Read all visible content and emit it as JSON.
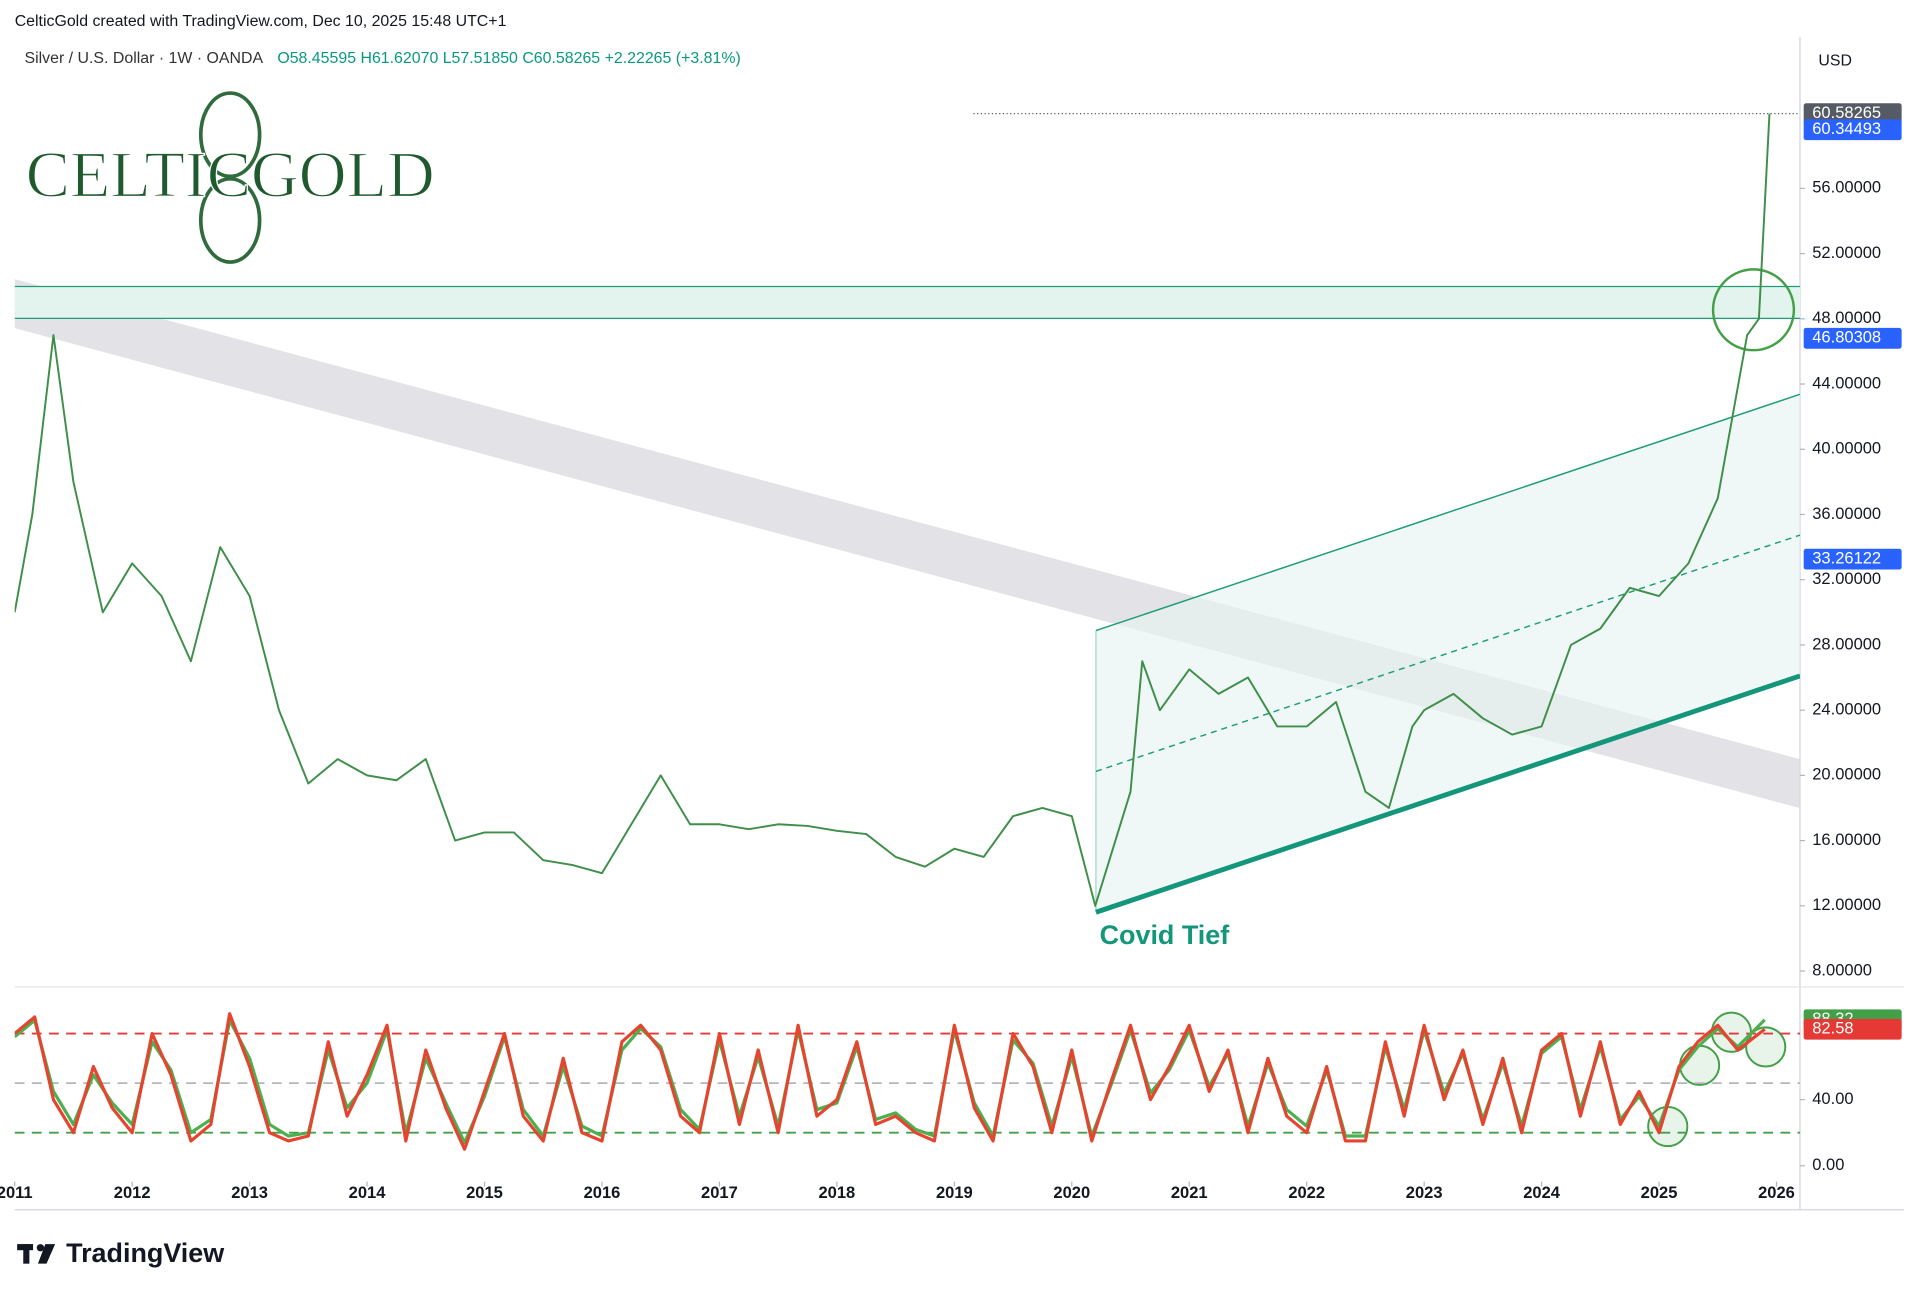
{
  "header": {
    "attribution": "CelticGold created with TradingView.com, Dec 10, 2025 15:48 UTC+1"
  },
  "logo": {
    "text": "CELTICGOLD"
  },
  "annotations": {
    "covid": "Covid Tief"
  },
  "chart_data": [
    {
      "type": "line",
      "title": "Silver / U.S. Dollar · 1W · OANDA",
      "quote": "O58.45595 H61.62070 L57.51850 C60.58265 +2.22265 (+3.81%)",
      "unit": "USD",
      "xlim": [
        2011,
        2026.2
      ],
      "ylim": [
        7.1,
        65.3
      ],
      "grid": false,
      "yticks": [
        {
          "value": 8,
          "label": "8.00000"
        },
        {
          "value": 12,
          "label": "12.00000"
        },
        {
          "value": 16,
          "label": "16.00000"
        },
        {
          "value": 20,
          "label": "20.00000"
        },
        {
          "value": 24,
          "label": "24.00000"
        },
        {
          "value": 28,
          "label": "28.00000"
        },
        {
          "value": 32,
          "label": "32.00000"
        },
        {
          "value": 36,
          "label": "36.00000"
        },
        {
          "value": 40,
          "label": "40.00000"
        },
        {
          "value": 44,
          "label": "44.00000"
        },
        {
          "value": 48,
          "label": "48.00000"
        },
        {
          "value": 52,
          "label": "52.00000"
        },
        {
          "value": 56,
          "label": "56.00000"
        }
      ],
      "series": [
        {
          "color": "#3f8f4a",
          "x": [
            2011.0,
            2011.15,
            2011.33,
            2011.5,
            2011.75,
            2012.0,
            2012.25,
            2012.5,
            2012.75,
            2013.0,
            2013.25,
            2013.5,
            2013.75,
            2014.0,
            2014.25,
            2014.5,
            2014.75,
            2015.0,
            2015.25,
            2015.5,
            2015.75,
            2016.0,
            2016.25,
            2016.5,
            2016.75,
            2017.0,
            2017.25,
            2017.5,
            2017.75,
            2018.0,
            2018.25,
            2018.5,
            2018.75,
            2019.0,
            2019.25,
            2019.5,
            2019.75,
            2020.0,
            2020.2,
            2020.5,
            2020.6,
            2020.75,
            2021.0,
            2021.25,
            2021.5,
            2021.75,
            2022.0,
            2022.25,
            2022.5,
            2022.7,
            2022.9,
            2023.0,
            2023.25,
            2023.5,
            2023.75,
            2024.0,
            2024.25,
            2024.5,
            2024.75,
            2025.0,
            2025.25,
            2025.5,
            2025.75,
            2025.85,
            2025.94
          ],
          "values": [
            30,
            36,
            47,
            38,
            30,
            33,
            31,
            27,
            34,
            31,
            24,
            19.5,
            21,
            20,
            19.7,
            21,
            16,
            16.5,
            16.5,
            14.8,
            14.5,
            14,
            17,
            20,
            17,
            17,
            16.7,
            17,
            16.9,
            16.6,
            16.4,
            15,
            14.4,
            15.5,
            15,
            17.5,
            18,
            17.5,
            12,
            19,
            27,
            24,
            26.5,
            25,
            26,
            23,
            23,
            24.5,
            19,
            18,
            23,
            24,
            25,
            23.5,
            22.5,
            23,
            28,
            29,
            31.5,
            31,
            33,
            37,
            47,
            48,
            60.58265
          ]
        }
      ],
      "price_markers": [
        {
          "value": 60.58265,
          "color": "#555a64",
          "line": true
        },
        {
          "value": 60.34493,
          "color": "#2962ff",
          "line": false
        },
        {
          "value": 46.80308,
          "color": "#2962ff",
          "line": false
        },
        {
          "value": 33.26122,
          "color": "#2962ff",
          "line": false
        }
      ]
    },
    {
      "type": "line",
      "xlim": [
        2011,
        2026.2
      ],
      "ylim": [
        -9.6,
        106.7
      ],
      "yticks": [
        {
          "value": 0,
          "label": "0.00"
        },
        {
          "value": 40,
          "label": "40.00"
        }
      ],
      "xticks": [
        {
          "value": 2011,
          "label": "2011"
        },
        2012,
        2013,
        2014,
        2015,
        2016,
        2017,
        2018,
        2019,
        2020,
        2021,
        2022,
        2023,
        2024,
        2025,
        2026
      ],
      "hlines": [
        {
          "value": 80,
          "color": "#e53935"
        },
        {
          "value": 50,
          "color": "#b2b5be"
        },
        {
          "value": 20,
          "color": "#43a047"
        }
      ],
      "x": [
        2011.0,
        2011.17,
        2011.33,
        2011.5,
        2011.67,
        2011.83,
        2012.0,
        2012.17,
        2012.33,
        2012.5,
        2012.67,
        2012.83,
        2013.0,
        2013.17,
        2013.33,
        2013.5,
        2013.67,
        2013.83,
        2014.0,
        2014.17,
        2014.33,
        2014.5,
        2014.67,
        2014.83,
        2015.0,
        2015.17,
        2015.33,
        2015.5,
        2015.67,
        2015.83,
        2016.0,
        2016.17,
        2016.33,
        2016.5,
        2016.67,
        2016.83,
        2017.0,
        2017.17,
        2017.33,
        2017.5,
        2017.67,
        2017.83,
        2018.0,
        2018.17,
        2018.33,
        2018.5,
        2018.67,
        2018.83,
        2019.0,
        2019.17,
        2019.33,
        2019.5,
        2019.67,
        2019.83,
        2020.0,
        2020.17,
        2020.33,
        2020.5,
        2020.67,
        2020.83,
        2021.0,
        2021.17,
        2021.33,
        2021.5,
        2021.67,
        2021.83,
        2022.0,
        2022.17,
        2022.33,
        2022.5,
        2022.67,
        2022.83,
        2023.0,
        2023.17,
        2023.33,
        2023.5,
        2023.67,
        2023.83,
        2024.0,
        2024.17,
        2024.33,
        2024.5,
        2024.67,
        2024.83,
        2025.0,
        2025.17,
        2025.33,
        2025.5,
        2025.67,
        2025.9
      ],
      "series": [
        {
          "color": "#4caf50",
          "values": [
            78,
            88,
            45,
            25,
            55,
            38,
            25,
            75,
            58,
            20,
            28,
            88,
            65,
            25,
            18,
            20,
            70,
            35,
            50,
            82,
            20,
            65,
            38,
            14,
            42,
            78,
            34,
            18,
            60,
            24,
            18,
            70,
            83,
            72,
            34,
            22,
            76,
            30,
            66,
            24,
            82,
            34,
            38,
            72,
            28,
            32,
            22,
            18,
            82,
            38,
            18,
            76,
            62,
            24,
            66,
            18,
            48,
            82,
            44,
            58,
            82,
            48,
            68,
            24,
            62,
            34,
            24,
            58,
            18,
            18,
            72,
            34,
            82,
            44,
            68,
            28,
            62,
            24,
            68,
            78,
            34,
            72,
            28,
            42,
            24,
            58,
            72,
            83,
            72,
            88.32
          ]
        },
        {
          "color": "#e5452f",
          "values": [
            80,
            90,
            40,
            20,
            60,
            35,
            20,
            80,
            55,
            15,
            25,
            92,
            60,
            20,
            15,
            18,
            75,
            30,
            55,
            85,
            15,
            70,
            35,
            10,
            45,
            80,
            30,
            15,
            65,
            20,
            15,
            75,
            85,
            70,
            30,
            20,
            80,
            25,
            70,
            20,
            85,
            30,
            40,
            75,
            25,
            30,
            20,
            15,
            85,
            35,
            15,
            80,
            60,
            20,
            70,
            15,
            50,
            85,
            40,
            60,
            85,
            45,
            70,
            20,
            65,
            30,
            20,
            60,
            15,
            15,
            75,
            30,
            85,
            40,
            70,
            25,
            65,
            20,
            70,
            80,
            30,
            75,
            25,
            45,
            20,
            60,
            75,
            85,
            70,
            82.58
          ]
        }
      ],
      "value_markers": [
        {
          "value": 88.32,
          "color": "#43a047"
        },
        {
          "value": 82.58,
          "color": "#e53935"
        }
      ]
    }
  ],
  "footer": {
    "brand": "TradingView"
  }
}
